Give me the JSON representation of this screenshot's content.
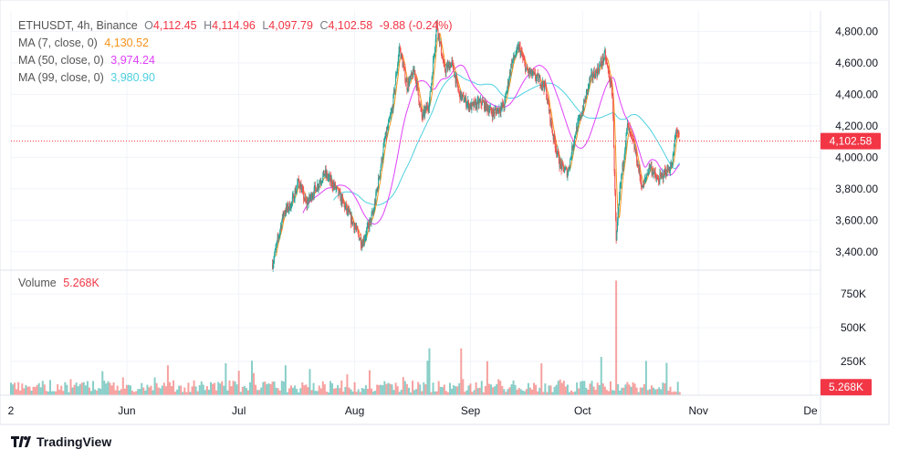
{
  "header": {
    "symbol": "ETHUSDT",
    "interval": "4h",
    "exchange": "Binance",
    "open_label": "O",
    "open": "4,112.45",
    "high_label": "H",
    "high": "4,114.96",
    "low_label": "L",
    "low": "4,097.79",
    "close_label": "C",
    "close": "4,102.58",
    "change": "-9.88 (-0.24%)"
  },
  "indicators": [
    {
      "label": "MA (7, close, 0)",
      "value": "4,130.52",
      "color": "#f7931a"
    },
    {
      "label": "MA (50, close, 0)",
      "value": "3,974.24",
      "color": "#e040fb"
    },
    {
      "label": "MA (99, close, 0)",
      "value": "3,980.90",
      "color": "#4dd0e1"
    }
  ],
  "volume": {
    "label": "Volume",
    "value": "5.268K",
    "color": "#f23645"
  },
  "colors": {
    "up": "#26a69a",
    "down": "#ef5350",
    "grid": "#f0f3fa",
    "axis_text": "#131722",
    "price_line": "#f23645"
  },
  "brand": "TradingView",
  "chart_data": {
    "type": "candlestick",
    "price_axis": {
      "ticks": [
        3400,
        3600,
        3800,
        4000,
        4200,
        4400,
        4600,
        4800
      ],
      "tick_labels": [
        "3,400.00",
        "3,600.00",
        "3,800.00",
        "4,000.00",
        "4,200.00",
        "4,400.00",
        "4,600.00",
        "4,800.00"
      ],
      "range": [
        3300,
        4930
      ]
    },
    "volume_axis": {
      "ticks": [
        250,
        500,
        750
      ],
      "tick_labels": [
        "250K",
        "500K",
        "750K"
      ],
      "range": [
        0,
        900
      ]
    },
    "time_axis": {
      "labels": [
        "2",
        "Jun",
        "Jul",
        "Aug",
        "Sep",
        "Oct",
        "Nov",
        "De"
      ]
    },
    "last_price": {
      "value": 4102.58,
      "label": "4,102.58"
    },
    "last_volume": {
      "value": 5.268,
      "label": "5.268K"
    },
    "price_path": [
      [
        "2025-07-10",
        3320
      ],
      [
        "2025-07-13",
        3650
      ],
      [
        "2025-07-15",
        3700
      ],
      [
        "2025-07-17",
        3850
      ],
      [
        "2025-07-19",
        3700
      ],
      [
        "2025-07-21",
        3780
      ],
      [
        "2025-07-24",
        3900
      ],
      [
        "2025-07-27",
        3800
      ],
      [
        "2025-08-01",
        3560
      ],
      [
        "2025-08-03",
        3450
      ],
      [
        "2025-08-06",
        3650
      ],
      [
        "2025-08-09",
        4100
      ],
      [
        "2025-08-11",
        4300
      ],
      [
        "2025-08-13",
        4700
      ],
      [
        "2025-08-15",
        4450
      ],
      [
        "2025-08-17",
        4550
      ],
      [
        "2025-08-19",
        4250
      ],
      [
        "2025-08-21",
        4350
      ],
      [
        "2025-08-23",
        4850
      ],
      [
        "2025-08-25",
        4550
      ],
      [
        "2025-08-27",
        4600
      ],
      [
        "2025-08-29",
        4400
      ],
      [
        "2025-09-01",
        4320
      ],
      [
        "2025-09-04",
        4350
      ],
      [
        "2025-09-07",
        4280
      ],
      [
        "2025-09-10",
        4330
      ],
      [
        "2025-09-12",
        4600
      ],
      [
        "2025-09-14",
        4700
      ],
      [
        "2025-09-16",
        4550
      ],
      [
        "2025-09-19",
        4500
      ],
      [
        "2025-09-21",
        4450
      ],
      [
        "2025-09-23",
        4150
      ],
      [
        "2025-09-25",
        3950
      ],
      [
        "2025-09-27",
        3900
      ],
      [
        "2025-09-29",
        4150
      ],
      [
        "2025-10-01",
        4300
      ],
      [
        "2025-10-03",
        4500
      ],
      [
        "2025-10-05",
        4550
      ],
      [
        "2025-10-07",
        4650
      ],
      [
        "2025-10-09",
        4400
      ],
      [
        "2025-10-10",
        3450
      ],
      [
        "2025-10-11",
        3800
      ],
      [
        "2025-10-13",
        4200
      ],
      [
        "2025-10-15",
        4050
      ],
      [
        "2025-10-17",
        3800
      ],
      [
        "2025-10-19",
        3950
      ],
      [
        "2025-10-21",
        3850
      ],
      [
        "2025-10-23",
        3900
      ],
      [
        "2025-10-25",
        3950
      ],
      [
        "2025-10-26",
        4180
      ],
      [
        "2025-10-27",
        4102.58
      ]
    ]
  }
}
